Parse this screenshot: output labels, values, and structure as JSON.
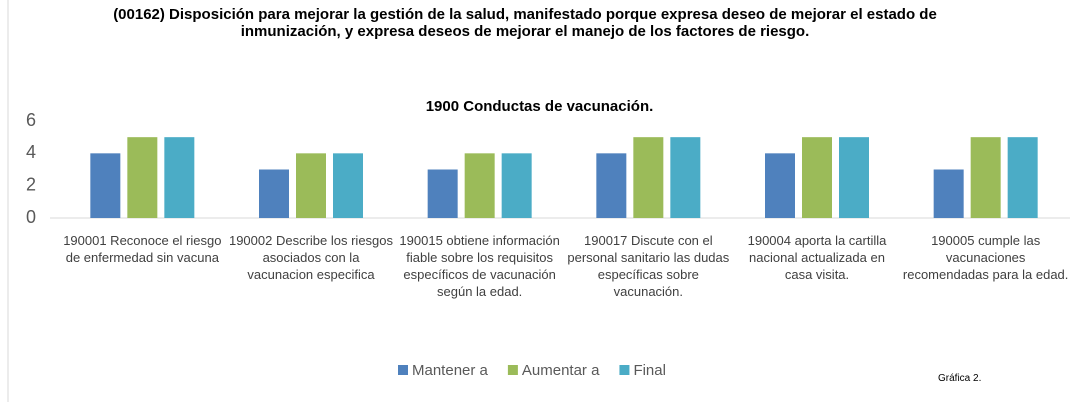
{
  "chart_data": {
    "type": "bar",
    "title": "(00162) Disposición para mejorar la gestión de la salud, manifestado porque expresa deseo de mejorar el estado de inmunización, y expresa deseos de mejorar el manejo de los factores de riesgo.",
    "subtitle": "1900 Conductas de vacunación.",
    "categories": [
      "190001  Reconoce el riesgo de enfermedad sin vacuna",
      "190002 Describe los riesgos asociados con la vacunacion especifica",
      "190015 obtiene información fiable sobre los requisitos específicos de vacunación según la edad.",
      "190017 Discute con el personal sanitario las dudas específicas sobre vacunación.",
      "190004 aporta la cartilla nacional actualizada en casa visita.",
      "190005 cumple las vacunaciones recomendadas para la edad."
    ],
    "series": [
      {
        "name": "Mantener a",
        "color": "#4f81bd",
        "values": [
          4,
          3,
          3,
          4,
          4,
          3
        ]
      },
      {
        "name": "Aumentar a",
        "color": "#9bbb59",
        "values": [
          5,
          4,
          4,
          5,
          5,
          5
        ]
      },
      {
        "name": "Final",
        "color": "#4bacc6",
        "values": [
          5,
          4,
          4,
          5,
          5,
          5
        ]
      }
    ],
    "ylim": [
      0,
      6
    ],
    "yticks": [
      0,
      2,
      4,
      6
    ],
    "grid": false,
    "legend": "bottom",
    "annotation": "Gráfica 2."
  }
}
